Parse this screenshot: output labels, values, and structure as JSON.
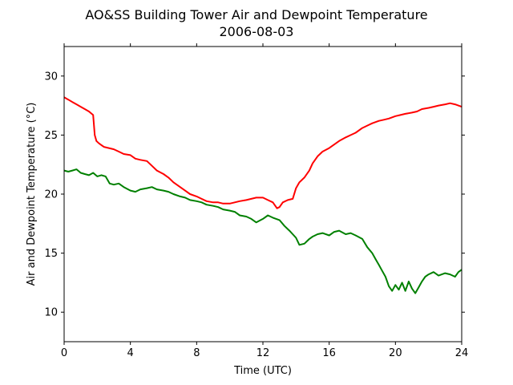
{
  "chart_data": {
    "type": "line",
    "title": "AO&SS Building Tower Air and Dewpoint Temperature",
    "subtitle": "2006-08-03",
    "xlabel": "Time (UTC)",
    "ylabel": "Air and Dewpoint Temperature (°C)",
    "xlim": [
      0,
      24
    ],
    "ylim": [
      7.5,
      32.5
    ],
    "xticks": [
      0,
      4,
      8,
      12,
      16,
      20,
      24
    ],
    "xtick_labels": [
      "0",
      "4",
      "8",
      "12",
      "16",
      "20",
      "24"
    ],
    "yticks": [
      10,
      15,
      20,
      25,
      30
    ],
    "ytick_labels": [
      "10",
      "15",
      "20",
      "25",
      "30"
    ],
    "grid": false,
    "series": [
      {
        "color": "#ff0000",
        "x": [
          0.0,
          0.25,
          0.5,
          0.75,
          1.0,
          1.25,
          1.5,
          1.75,
          1.85,
          1.95,
          2.1,
          2.4,
          2.7,
          3.0,
          3.3,
          3.6,
          4.0,
          4.3,
          4.6,
          5.0,
          5.3,
          5.6,
          6.0,
          6.3,
          6.6,
          7.0,
          7.3,
          7.6,
          8.0,
          8.3,
          8.6,
          9.0,
          9.3,
          9.6,
          10.0,
          10.3,
          10.6,
          11.0,
          11.3,
          11.6,
          12.0,
          12.3,
          12.6,
          12.85,
          13.0,
          13.2,
          13.5,
          13.8,
          14.0,
          14.2,
          14.5,
          14.8,
          15.0,
          15.3,
          15.6,
          16.0,
          16.3,
          16.6,
          17.0,
          17.3,
          17.6,
          18.0,
          18.3,
          18.6,
          19.0,
          19.3,
          19.6,
          20.0,
          20.3,
          20.6,
          21.0,
          21.3,
          21.6,
          22.0,
          22.3,
          22.6,
          23.0,
          23.3,
          23.6,
          24.0
        ],
        "values": [
          28.2,
          28.0,
          27.8,
          27.6,
          27.4,
          27.2,
          27.0,
          26.7,
          25.0,
          24.5,
          24.3,
          24.0,
          23.9,
          23.8,
          23.6,
          23.4,
          23.3,
          23.0,
          22.9,
          22.8,
          22.4,
          22.0,
          21.7,
          21.4,
          21.0,
          20.6,
          20.3,
          20.0,
          19.8,
          19.6,
          19.4,
          19.3,
          19.3,
          19.2,
          19.2,
          19.3,
          19.4,
          19.5,
          19.6,
          19.7,
          19.7,
          19.5,
          19.3,
          18.8,
          18.9,
          19.3,
          19.5,
          19.6,
          20.5,
          21.0,
          21.4,
          22.0,
          22.6,
          23.2,
          23.6,
          23.9,
          24.2,
          24.5,
          24.8,
          25.0,
          25.2,
          25.6,
          25.8,
          26.0,
          26.2,
          26.3,
          26.4,
          26.6,
          26.7,
          26.8,
          26.9,
          27.0,
          27.2,
          27.3,
          27.4,
          27.5,
          27.6,
          27.7,
          27.6,
          27.4
        ]
      },
      {
        "color": "#008000",
        "x": [
          0.0,
          0.25,
          0.5,
          0.75,
          1.0,
          1.25,
          1.5,
          1.75,
          2.0,
          2.25,
          2.5,
          2.75,
          3.0,
          3.3,
          3.6,
          4.0,
          4.3,
          4.6,
          5.0,
          5.3,
          5.6,
          6.0,
          6.3,
          6.6,
          7.0,
          7.3,
          7.6,
          8.0,
          8.3,
          8.6,
          9.0,
          9.3,
          9.6,
          10.0,
          10.3,
          10.6,
          11.0,
          11.3,
          11.6,
          12.0,
          12.3,
          12.6,
          13.0,
          13.3,
          13.6,
          13.8,
          14.0,
          14.2,
          14.5,
          14.8,
          15.0,
          15.3,
          15.6,
          16.0,
          16.3,
          16.6,
          17.0,
          17.3,
          17.6,
          18.0,
          18.3,
          18.6,
          18.8,
          19.0,
          19.2,
          19.4,
          19.6,
          19.8,
          20.0,
          20.2,
          20.4,
          20.6,
          20.8,
          21.0,
          21.2,
          21.4,
          21.6,
          21.8,
          22.0,
          22.3,
          22.6,
          23.0,
          23.3,
          23.6,
          23.8,
          24.0
        ],
        "values": [
          22.0,
          21.9,
          22.0,
          22.1,
          21.8,
          21.7,
          21.6,
          21.8,
          21.5,
          21.6,
          21.5,
          20.9,
          20.8,
          20.9,
          20.6,
          20.3,
          20.2,
          20.4,
          20.5,
          20.6,
          20.4,
          20.3,
          20.2,
          20.0,
          19.8,
          19.7,
          19.5,
          19.4,
          19.3,
          19.1,
          19.0,
          18.9,
          18.7,
          18.6,
          18.5,
          18.2,
          18.1,
          17.9,
          17.6,
          17.9,
          18.2,
          18.0,
          17.8,
          17.3,
          16.9,
          16.6,
          16.3,
          15.7,
          15.8,
          16.2,
          16.4,
          16.6,
          16.7,
          16.5,
          16.8,
          16.9,
          16.6,
          16.7,
          16.5,
          16.2,
          15.5,
          15.0,
          14.5,
          14.0,
          13.5,
          13.0,
          12.2,
          11.8,
          12.3,
          11.9,
          12.5,
          11.8,
          12.6,
          12.0,
          11.6,
          12.1,
          12.6,
          13.0,
          13.2,
          13.4,
          13.1,
          13.3,
          13.2,
          13.0,
          13.4,
          13.6
        ]
      }
    ]
  }
}
